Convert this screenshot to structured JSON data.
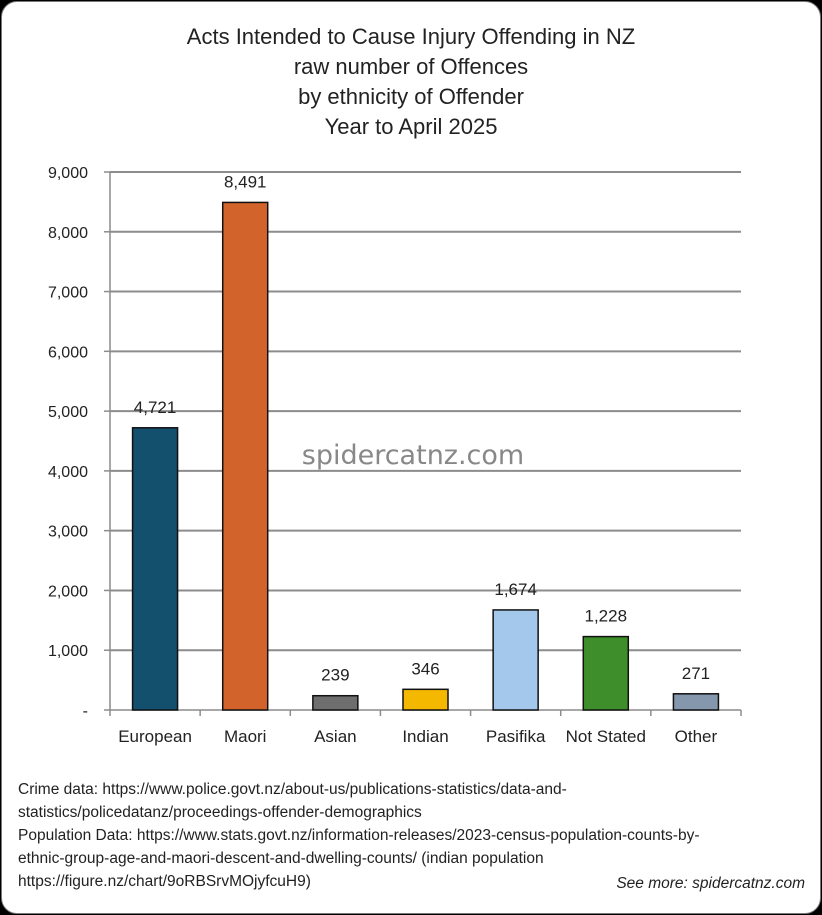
{
  "chart_data": {
    "type": "bar",
    "title_lines": [
      "Acts Intended to Cause Injury Offending in NZ",
      "raw number of Offences",
      "by ethnicity of Offender",
      "Year to April 2025"
    ],
    "categories": [
      "European",
      "Maori",
      "Asian",
      "Indian",
      "Pasifika",
      "Not Stated",
      "Other"
    ],
    "values": [
      4721,
      8491,
      239,
      346,
      1674,
      1228,
      271
    ],
    "value_labels": [
      "4,721",
      "8,491",
      "239",
      "346",
      "1,674",
      "1,228",
      "271"
    ],
    "colors": [
      "#13506E",
      "#D2632B",
      "#6E6E6E",
      "#F5B800",
      "#A4C8EC",
      "#3E8F2C",
      "#8497AD"
    ],
    "ylim": [
      0,
      9000
    ],
    "yticks": [
      0,
      1000,
      2000,
      3000,
      4000,
      5000,
      6000,
      7000,
      8000,
      9000
    ],
    "ytick_labels": [
      "-",
      "1,000",
      "2,000",
      "3,000",
      "4,000",
      "5,000",
      "6,000",
      "7,000",
      "8,000",
      "9,000"
    ],
    "grid": true,
    "xlabel": "",
    "ylabel": ""
  },
  "watermark": "spidercatnz.com",
  "sources": [
    "Crime data: https://www.police.govt.nz/about-us/publications-statistics/data-and-",
    "statistics/policedatanz/proceedings-offender-demographics",
    "Population Data: https://www.stats.govt.nz/information-releases/2023-census-population-counts-by-",
    "ethnic-group-age-and-maori-descent-and-dwelling-counts/ (indian population",
    "https://figure.nz/chart/9oRBSrvMOjyfcuH9)"
  ],
  "see_more": "See more: spidercatnz.com"
}
